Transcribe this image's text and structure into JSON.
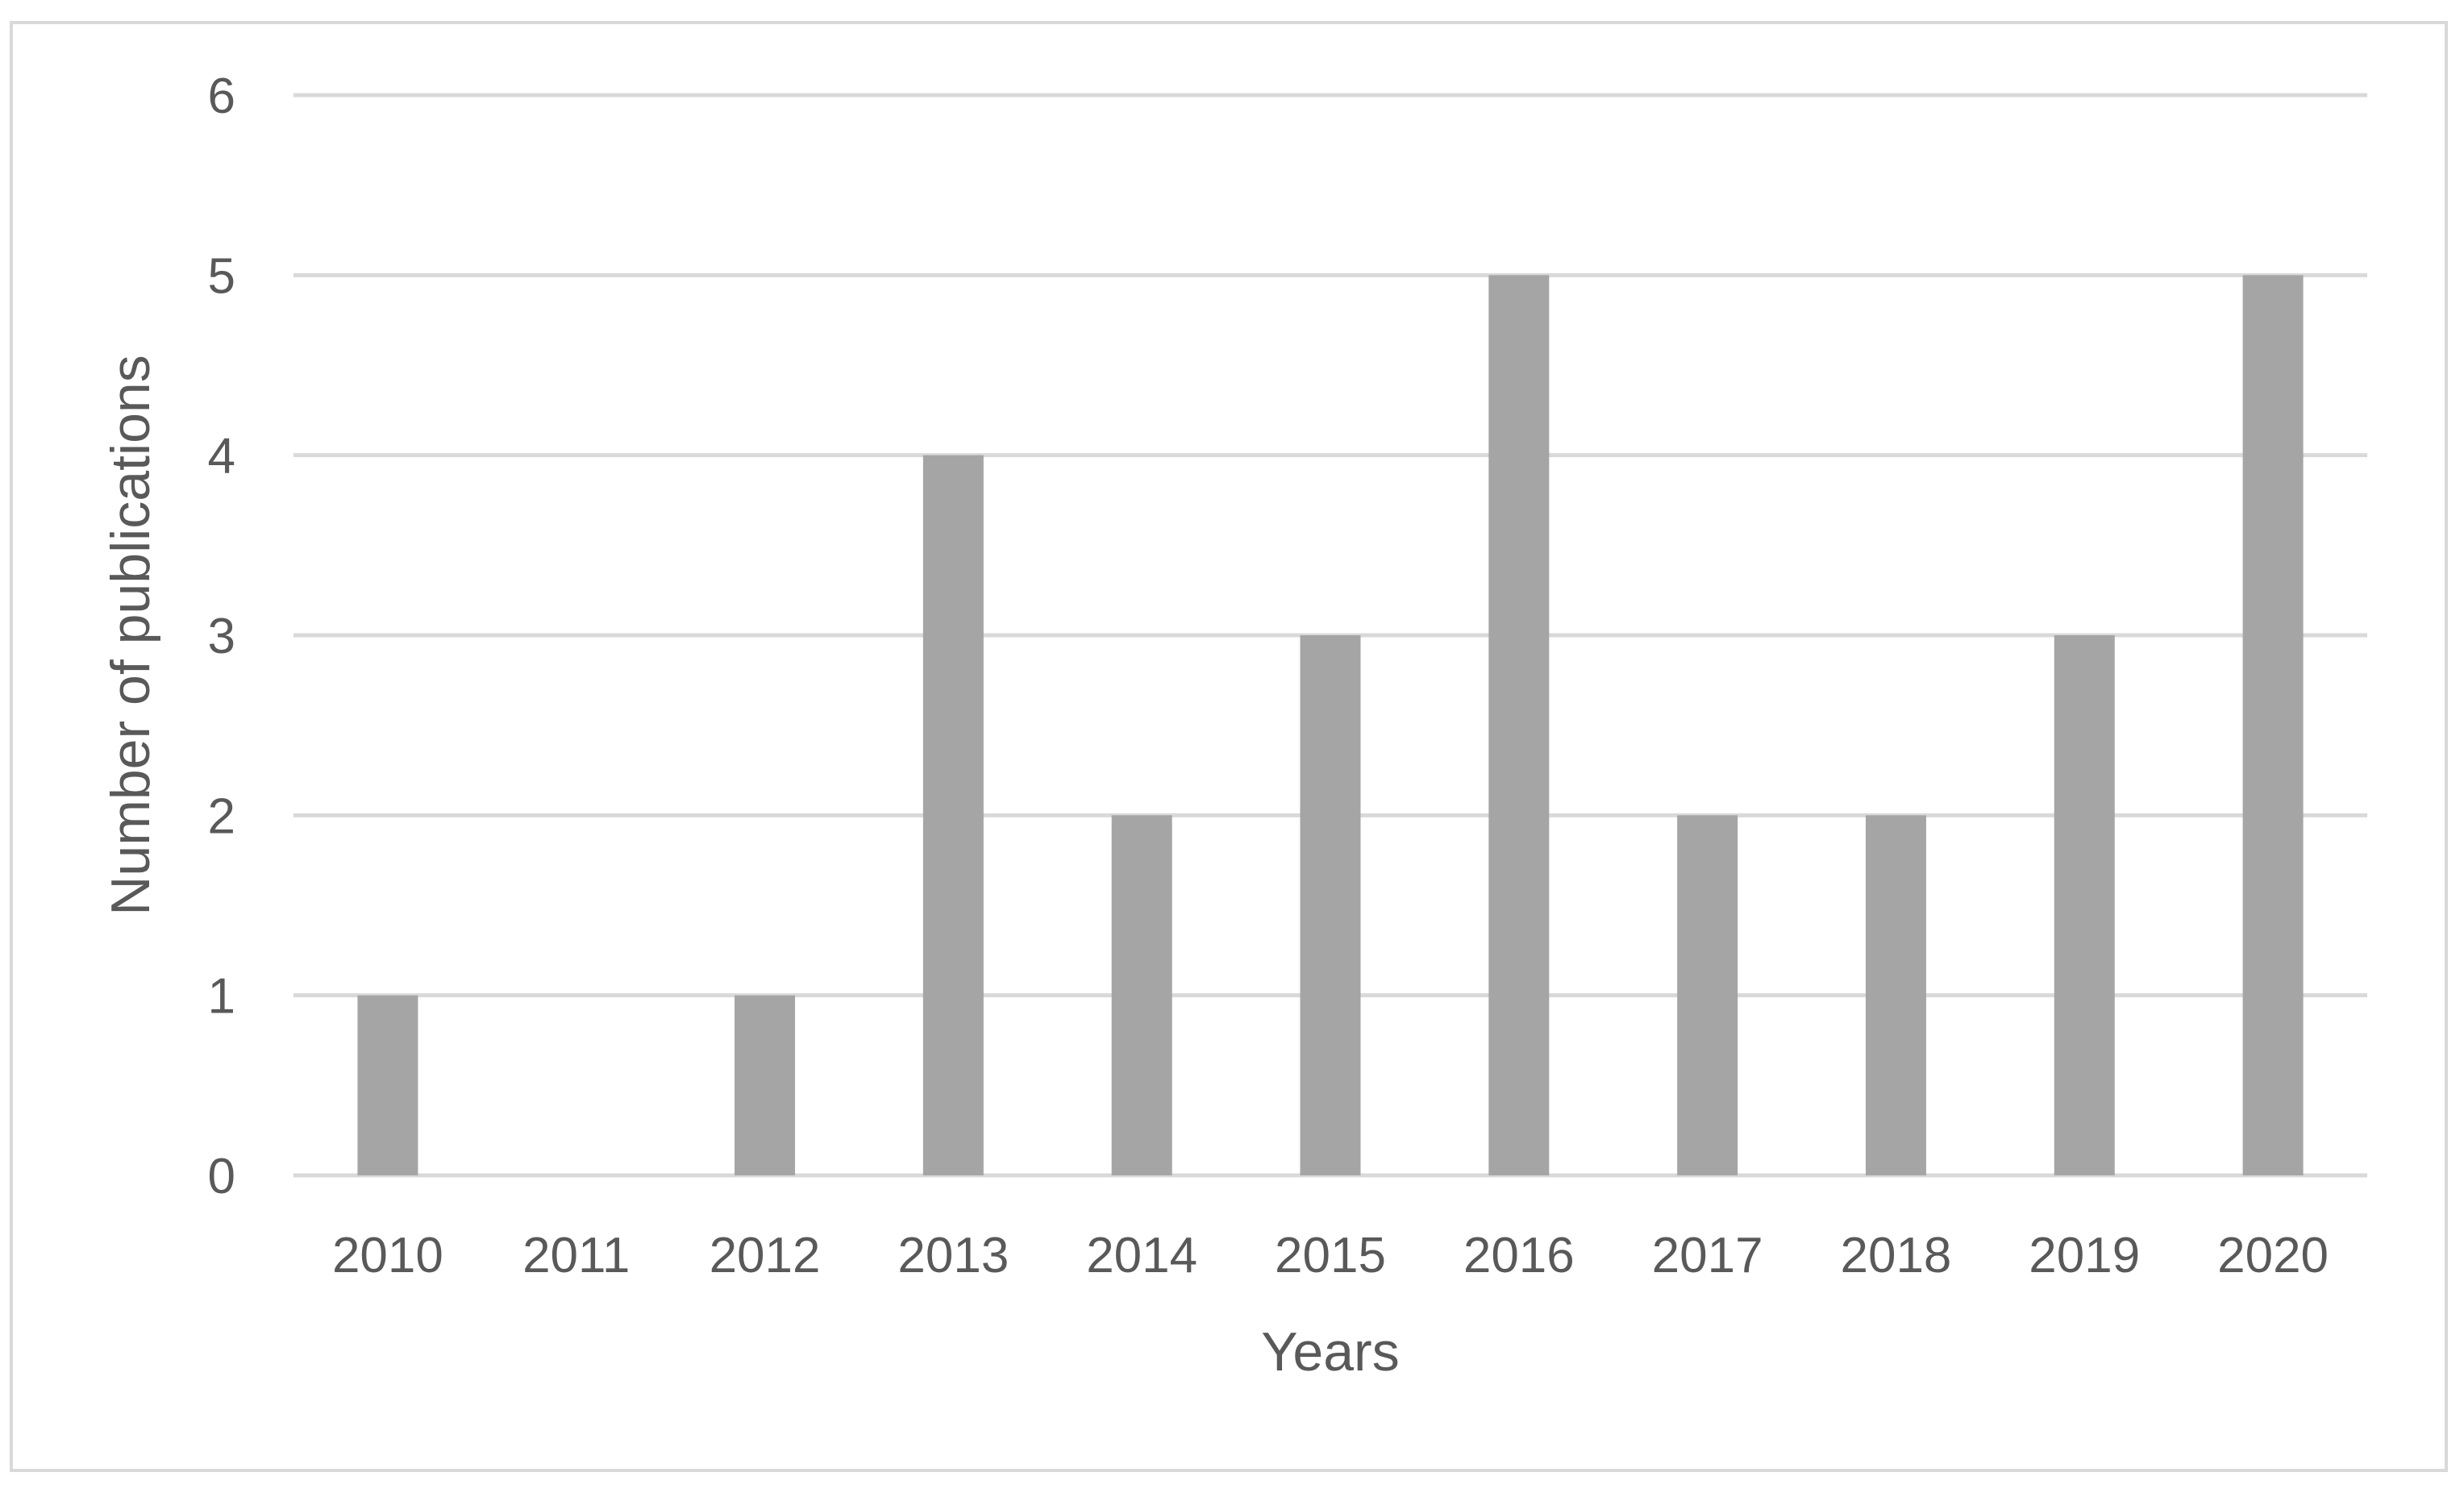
{
  "chart_data": {
    "type": "bar",
    "title": "",
    "xlabel": "Years",
    "ylabel": "Number of publications",
    "categories": [
      "2010",
      "2011",
      "2012",
      "2013",
      "2014",
      "2015",
      "2016",
      "2017",
      "2018",
      "2019",
      "2020"
    ],
    "values": [
      1,
      0,
      1,
      4,
      2,
      3,
      5,
      2,
      2,
      3,
      5
    ],
    "ylim": [
      0,
      6
    ],
    "yticks": [
      "0",
      "1",
      "2",
      "3",
      "4",
      "5",
      "6"
    ],
    "grid": true,
    "legend": "none",
    "colors": {
      "bar": "#a5a5a5",
      "grid": "#d9d9d9",
      "text": "#595959",
      "border": "#d9d9d9"
    }
  }
}
